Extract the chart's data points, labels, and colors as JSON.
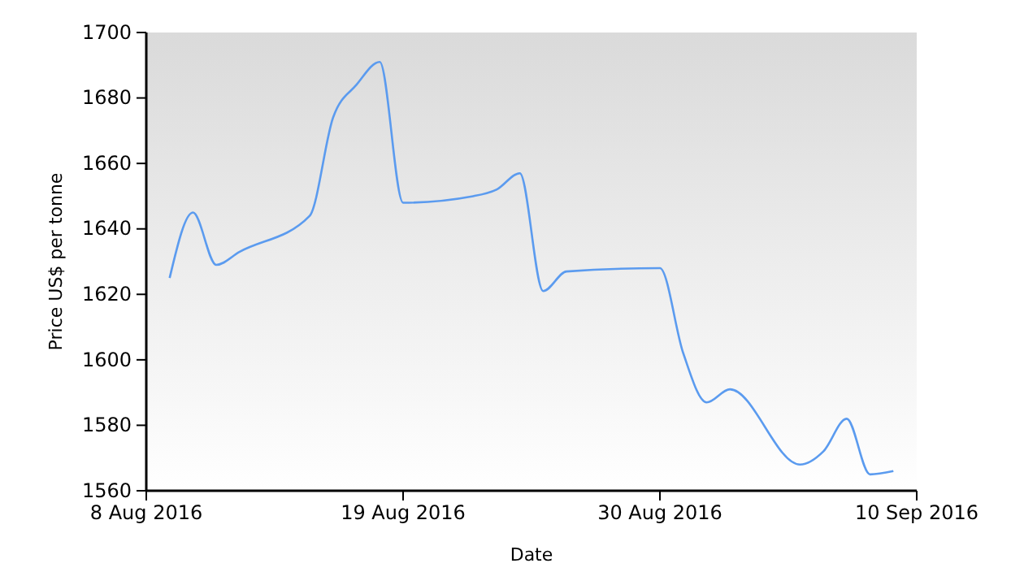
{
  "chart_data": {
    "type": "line",
    "xlabel": "Date",
    "ylabel": "Price US$ per tonne",
    "x": [
      "2016-08-09",
      "2016-08-10",
      "2016-08-11",
      "2016-08-12",
      "2016-08-15",
      "2016-08-16",
      "2016-08-17",
      "2016-08-18",
      "2016-08-19",
      "2016-08-22",
      "2016-08-23",
      "2016-08-24",
      "2016-08-25",
      "2016-08-26",
      "2016-08-30",
      "2016-08-31",
      "2016-09-01",
      "2016-09-02",
      "2016-09-05",
      "2016-09-06",
      "2016-09-07",
      "2016-09-08",
      "2016-09-09"
    ],
    "series": [
      {
        "color": "#5b9bef",
        "values": [
          1625,
          1645,
          1629,
          1633,
          1644,
          1674,
          1684,
          1691,
          1648,
          1650,
          1652,
          1657,
          1621,
          1627,
          1628,
          1602,
          1587,
          1591,
          1568,
          1572,
          1582,
          1565,
          1566
        ]
      }
    ],
    "xlim": [
      "2016-08-08",
      "2016-09-10"
    ],
    "xticks": [
      {
        "value": "2016-08-08",
        "label": "8 Aug 2016"
      },
      {
        "value": "2016-08-19",
        "label": "19 Aug 2016"
      },
      {
        "value": "2016-08-30",
        "label": "30 Aug 2016"
      },
      {
        "value": "2016-09-10",
        "label": "10 Sep 2016"
      }
    ],
    "ylim": [
      1560,
      1700
    ],
    "yticks": [
      1560,
      1580,
      1600,
      1620,
      1640,
      1660,
      1680,
      1700
    ],
    "grid": false,
    "marker": "none",
    "line_style": "solid"
  }
}
